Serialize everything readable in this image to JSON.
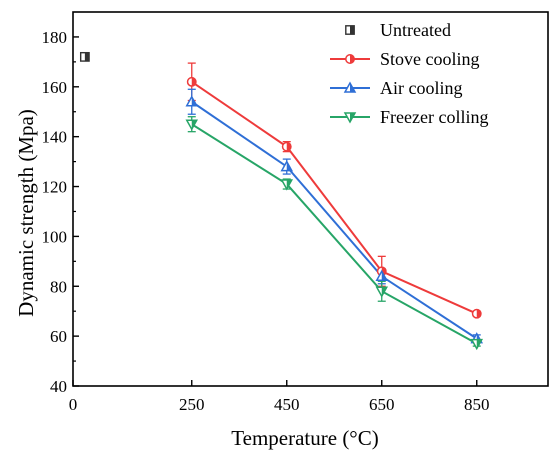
{
  "chart_data": {
    "type": "line",
    "xlabel": "Temperature (°C)",
    "ylabel": "Dynamic strength (Mpa)",
    "xlim": [
      0,
      1000
    ],
    "ylim": [
      40,
      190
    ],
    "xticks": [
      0,
      250,
      450,
      650,
      850
    ],
    "yticks": [
      40,
      60,
      80,
      100,
      120,
      140,
      160,
      180
    ],
    "grid": false,
    "legend_position": "top-right",
    "series": [
      {
        "name": "Untreated",
        "marker": "half-square",
        "color": "#333333",
        "line": false,
        "x": [
          25
        ],
        "y": [
          172
        ],
        "error": [
          1
        ]
      },
      {
        "name": "Stove cooling",
        "marker": "half-circle",
        "color": "#ee3b3b",
        "line": true,
        "x": [
          250,
          450,
          650,
          850
        ],
        "y": [
          162,
          136,
          86,
          69
        ],
        "error": [
          7.5,
          2,
          6,
          1
        ]
      },
      {
        "name": "Air cooling",
        "marker": "triangle-up",
        "color": "#2f6fd6",
        "line": true,
        "x": [
          250,
          450,
          650,
          850
        ],
        "y": [
          154,
          128,
          84,
          59
        ],
        "error": [
          5,
          3,
          3,
          1.5
        ]
      },
      {
        "name": "Freezer colling",
        "marker": "triangle-down",
        "color": "#27a567",
        "line": true,
        "x": [
          250,
          450,
          650,
          850
        ],
        "y": [
          145,
          121,
          78,
          57
        ],
        "error": [
          3,
          2,
          4,
          1
        ]
      }
    ]
  }
}
